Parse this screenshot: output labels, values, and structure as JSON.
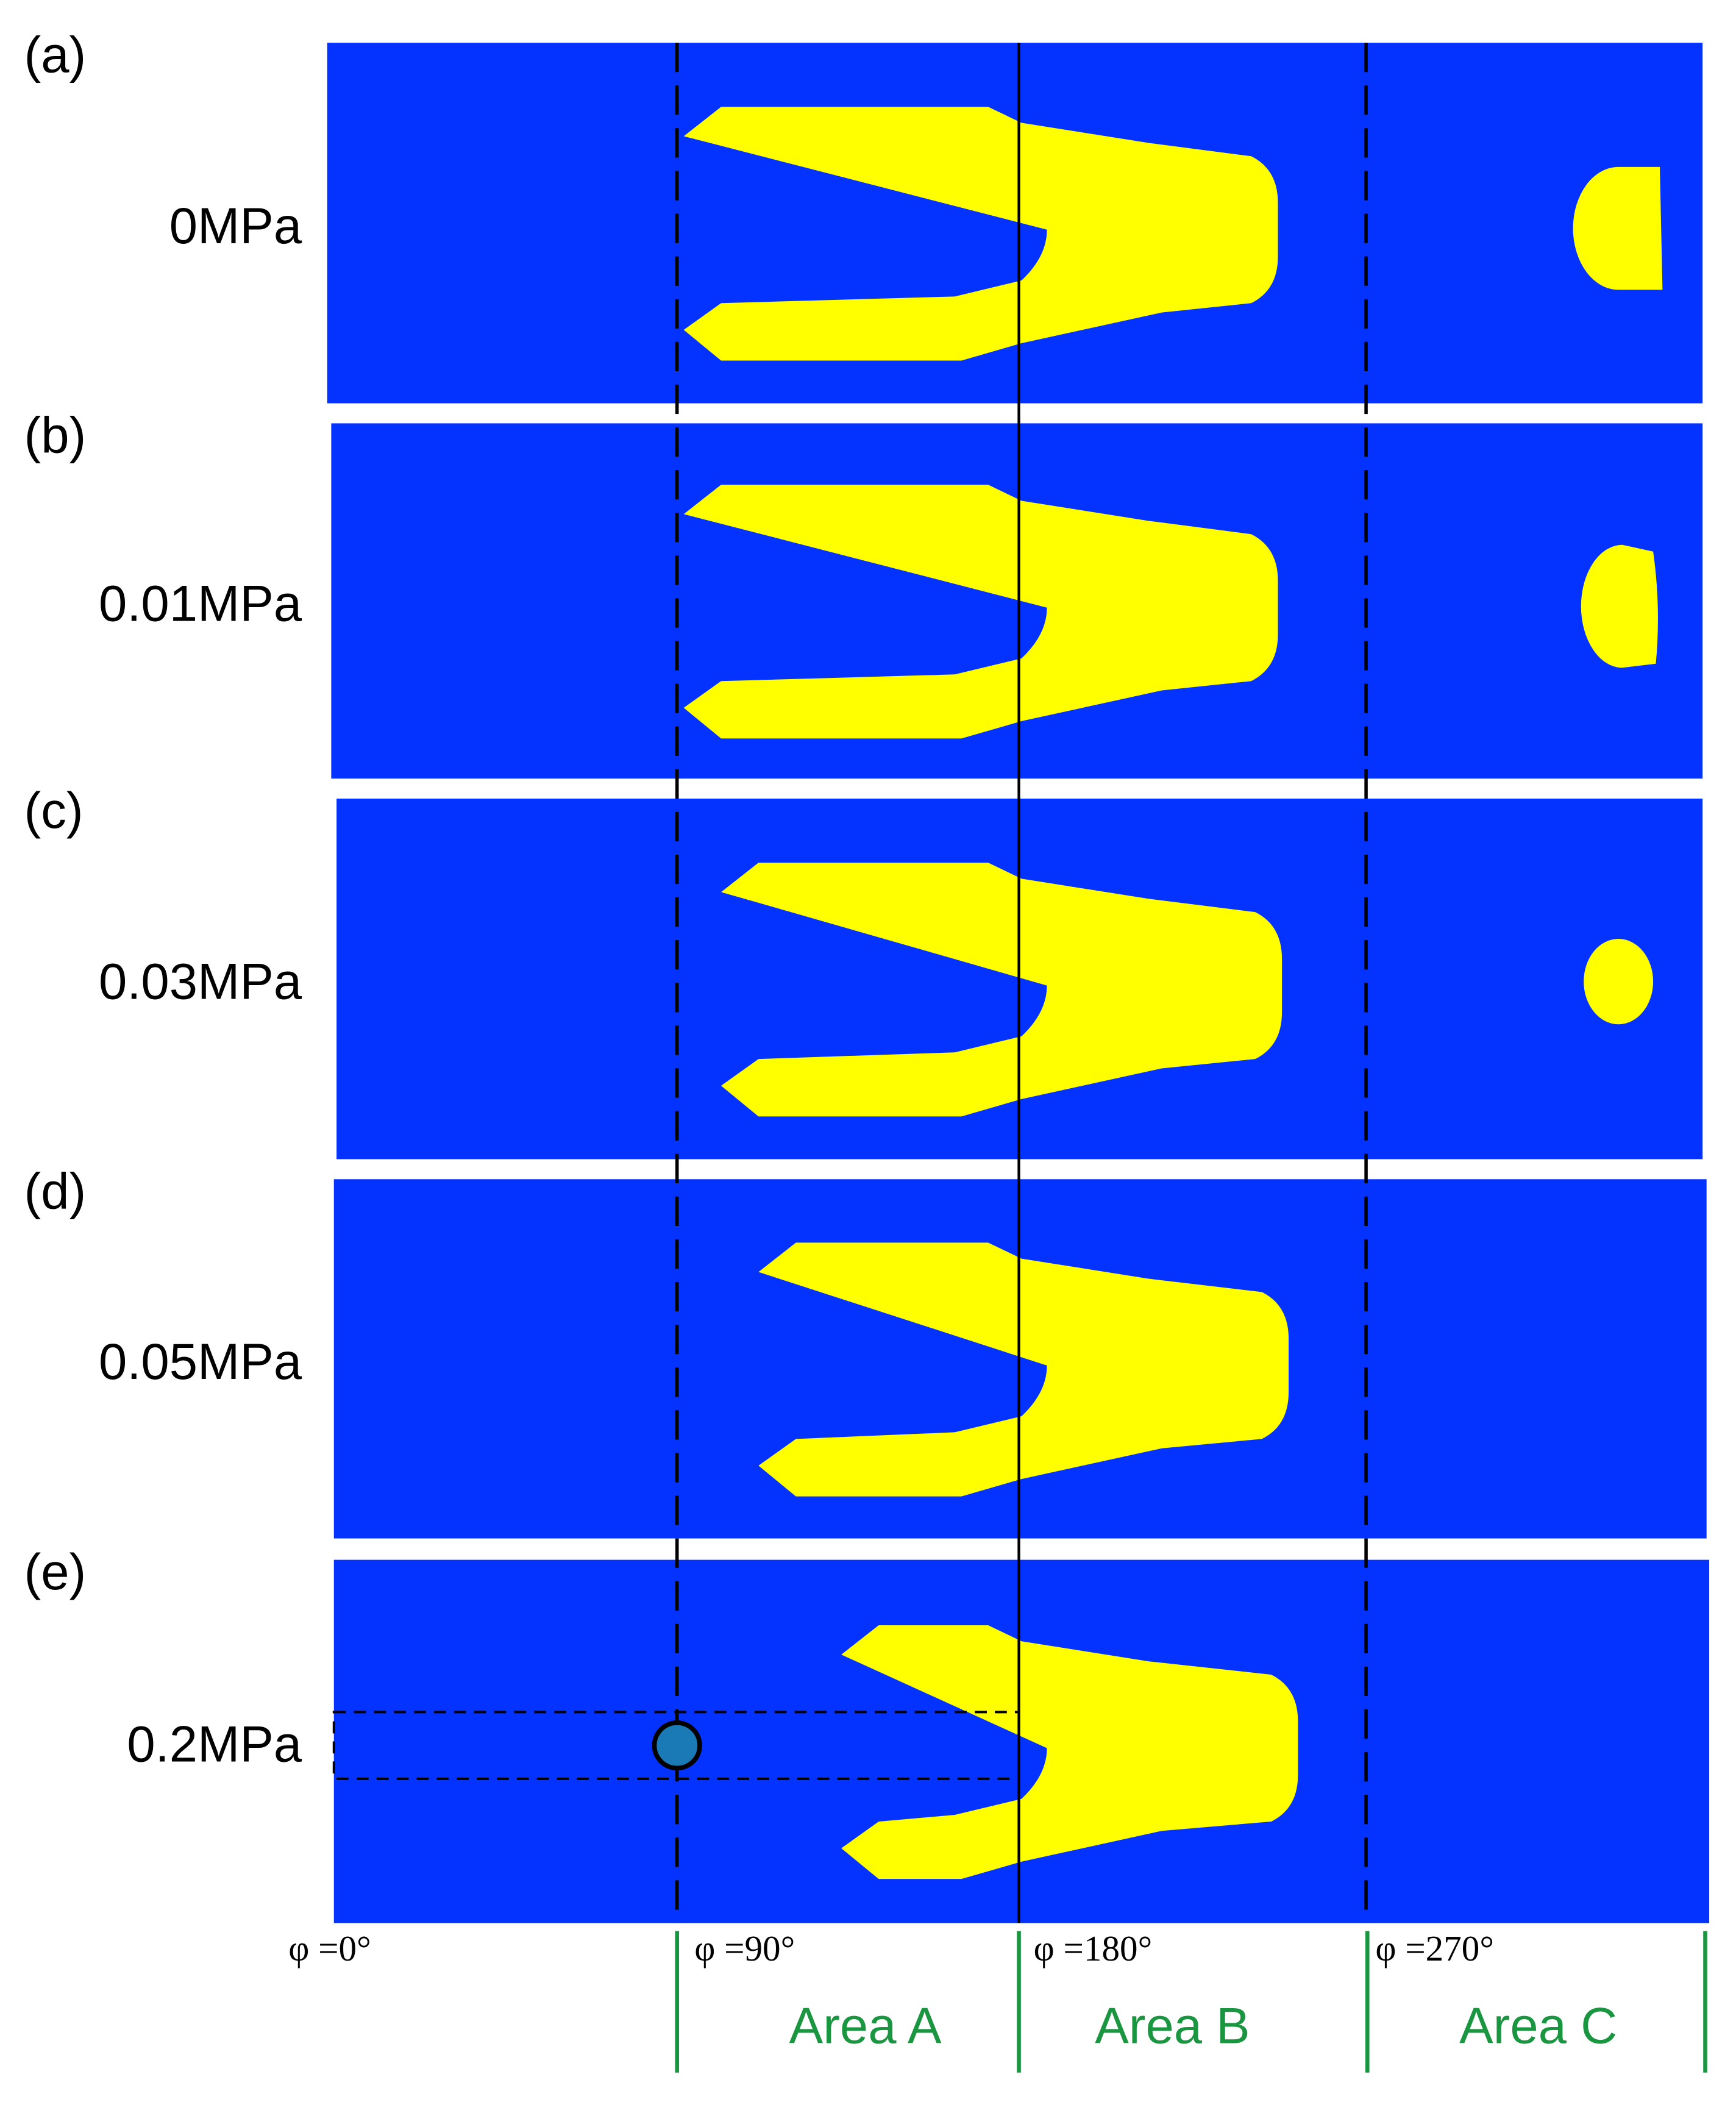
{
  "panels": [
    {
      "label": "(a)",
      "pressure": "0MPa"
    },
    {
      "label": "(b)",
      "pressure": "0.01MPa"
    },
    {
      "label": "(c)",
      "pressure": "0.03MPa"
    },
    {
      "label": "(d)",
      "pressure": "0.05MPa"
    },
    {
      "label": "(e)",
      "pressure": "0.2MPa"
    }
  ],
  "angles": [
    "φ =0°",
    "φ =90°",
    "φ =180°",
    "φ =270°"
  ],
  "areas": [
    "Area A",
    "Area B",
    "Area C"
  ]
}
